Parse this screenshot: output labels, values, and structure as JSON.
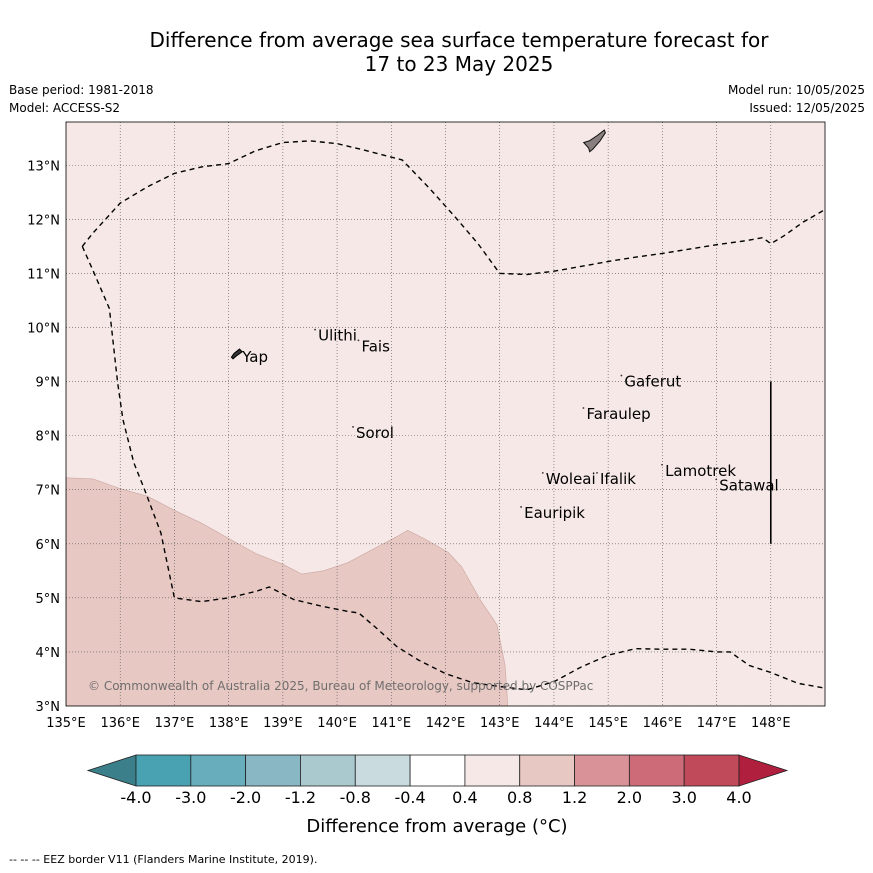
{
  "title": {
    "line1": "Difference from average sea surface temperature forecast for",
    "line2": "17 to 23 May 2025"
  },
  "meta": {
    "base_period": "Base period: 1981-2018",
    "model": "Model: ACCESS-S2",
    "model_run": "Model run: 10/05/2025",
    "issued": "Issued: 12/05/2025"
  },
  "map": {
    "lon_range": [
      135,
      149
    ],
    "lat_range": [
      3,
      13.8
    ],
    "lon_ticks": [
      "135°E",
      "136°E",
      "137°E",
      "138°E",
      "139°E",
      "140°E",
      "141°E",
      "142°E",
      "143°E",
      "144°E",
      "145°E",
      "146°E",
      "147°E",
      "148°E"
    ],
    "lat_ticks": [
      "3°N",
      "4°N",
      "5°N",
      "6°N",
      "7°N",
      "8°N",
      "9°N",
      "10°N",
      "11°N",
      "12°N",
      "13°N"
    ],
    "background_color": "#f5e8e6",
    "anomaly_region_color": "#e8c8c3",
    "anomaly_region_category": "0.8 to 1.2",
    "places": [
      {
        "name": "Yap",
        "lon": 138.25,
        "lat": 9.45
      },
      {
        "name": "Ulithi",
        "lon": 139.65,
        "lat": 9.85
      },
      {
        "name": "Fais",
        "lon": 140.45,
        "lat": 9.65
      },
      {
        "name": "Sorol",
        "lon": 140.35,
        "lat": 8.05
      },
      {
        "name": "Gaferut",
        "lon": 145.3,
        "lat": 9.0
      },
      {
        "name": "Faraulep",
        "lon": 144.6,
        "lat": 8.4
      },
      {
        "name": "Woleai",
        "lon": 143.85,
        "lat": 7.2
      },
      {
        "name": "Ifalik",
        "lon": 144.85,
        "lat": 7.2
      },
      {
        "name": "Lamotrek",
        "lon": 146.05,
        "lat": 7.35
      },
      {
        "name": "Satawal",
        "lon": 147.05,
        "lat": 7.08
      },
      {
        "name": "Eauripik",
        "lon": 143.45,
        "lat": 6.57
      }
    ],
    "copyright": "© Commonwealth of Australia 2025, Bureau of Meteorology, supported by COSPPac"
  },
  "colorbar": {
    "colors": [
      "#3b7f8a",
      "#48a2b2",
      "#68adbc",
      "#89b8c4",
      "#a9c9cf",
      "#c9dbdf",
      "#ffffff",
      "#f5e8e6",
      "#e8c8c3",
      "#d99298",
      "#cd6b78",
      "#c04a5a",
      "#b01f3d"
    ],
    "tick_labels": [
      "-4.0",
      "-3.0",
      "-2.0",
      "-1.2",
      "-0.8",
      "-0.4",
      "0.4",
      "0.8",
      "1.2",
      "2.0",
      "3.0",
      "4.0"
    ],
    "title": "Difference from average (°C)"
  },
  "footer": "--  --  -- EEZ border V11 (Flanders Marine Institute, 2019)."
}
